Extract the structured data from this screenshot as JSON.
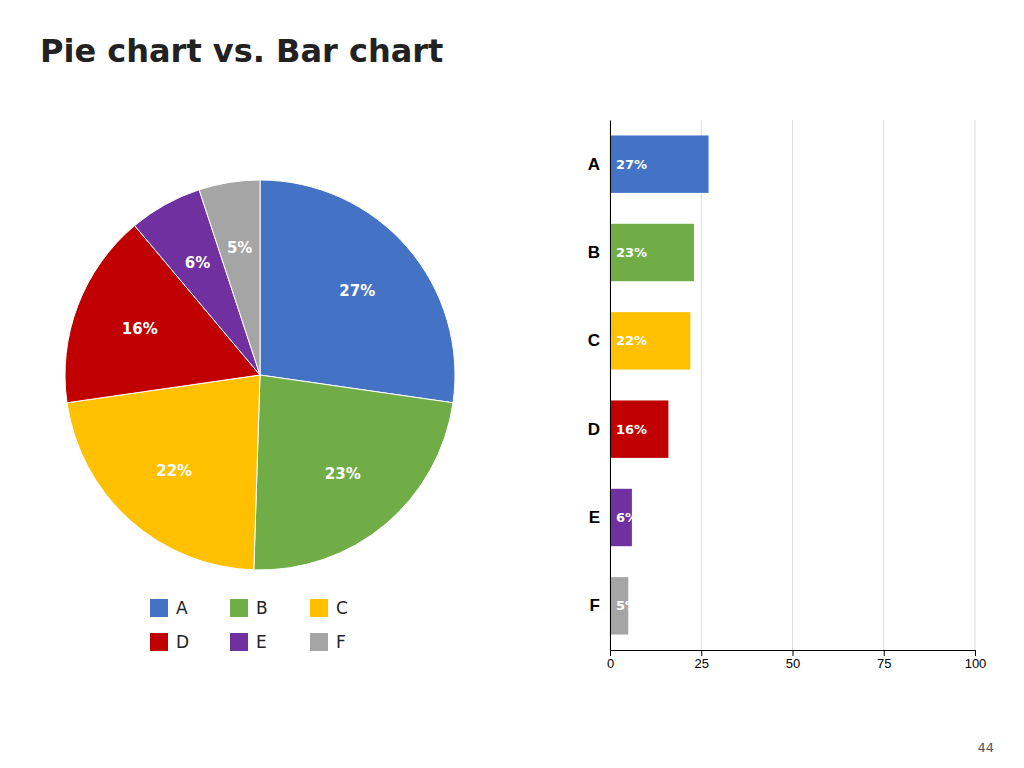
{
  "chart_data": [
    {
      "type": "pie",
      "title": "Pie chart  vs.  Bar chart",
      "annotations": [
        "44"
      ],
      "categories": [
        "A",
        "B",
        "C",
        "D",
        "E",
        "F"
      ],
      "values": [
        27,
        23,
        22,
        16,
        6,
        5
      ],
      "value_labels": [
        "27%",
        "23%",
        "22%",
        "16%",
        "6%",
        "5%"
      ],
      "colors": [
        "#4472C4",
        "#70AD47",
        "#FFC000",
        "#C00000",
        "#7030A0",
        "#A5A5A5"
      ],
      "data_labels": true,
      "legend": "bottom"
    },
    {
      "type": "bar",
      "orientation": "horizontal",
      "categories": [
        "A",
        "B",
        "C",
        "D",
        "E",
        "F"
      ],
      "values": [
        27,
        23,
        22,
        16,
        6,
        5
      ],
      "value_labels": [
        "27%",
        "23%",
        "22%",
        "16%",
        "6%",
        "5%"
      ],
      "colors": [
        "#4472C4",
        "#70AD47",
        "#FFC000",
        "#C00000",
        "#7030A0",
        "#A5A5A5"
      ],
      "xlim": [
        0,
        100
      ],
      "xticks": [
        0,
        25,
        50,
        75,
        100
      ],
      "grid": true,
      "data_labels": true
    }
  ]
}
